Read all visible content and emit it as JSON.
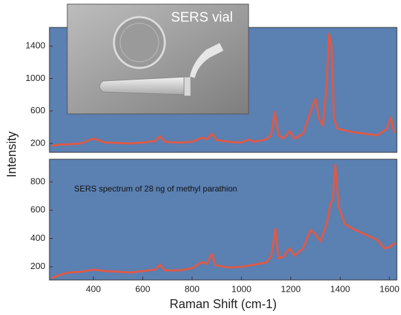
{
  "chart_data": [
    {
      "type": "line",
      "ylabel": "Intensity",
      "inset_label": "SERS vial",
      "color": "#dd5a48",
      "background": "#5b80b2",
      "xlim": [
        222,
        1630
      ],
      "ylim": [
        90,
        1630
      ],
      "yticks": [
        200,
        600,
        1000,
        1400
      ],
      "x": [
        230,
        260,
        300,
        350,
        400,
        420,
        450,
        500,
        550,
        600,
        650,
        670,
        690,
        750,
        800,
        840,
        860,
        880,
        900,
        950,
        1000,
        1030,
        1050,
        1100,
        1120,
        1135,
        1150,
        1170,
        1195,
        1215,
        1250,
        1270,
        1290,
        1300,
        1315,
        1330,
        1345,
        1355,
        1365,
        1375,
        1390,
        1450,
        1500,
        1550,
        1590,
        1605,
        1620
      ],
      "values": [
        170,
        185,
        190,
        200,
        260,
        240,
        210,
        205,
        200,
        210,
        230,
        290,
        220,
        210,
        220,
        270,
        250,
        320,
        240,
        220,
        210,
        250,
        220,
        250,
        300,
        590,
        300,
        260,
        350,
        260,
        320,
        500,
        680,
        750,
        500,
        420,
        900,
        1550,
        1400,
        500,
        380,
        340,
        320,
        300,
        380,
        520,
        330
      ]
    },
    {
      "type": "line",
      "xlabel": "Raman Shift (cm-1)",
      "annotation": "SERS spectrum of 28 ng of methyl parathion",
      "color": "#dd5a48",
      "background": "#5b80b2",
      "xlim": [
        222,
        1630
      ],
      "ylim": [
        107,
        960
      ],
      "yticks": [
        200,
        400,
        600,
        800
      ],
      "xticks": [
        400,
        600,
        800,
        1000,
        1200,
        1400,
        1600
      ],
      "x": [
        230,
        260,
        300,
        350,
        400,
        450,
        500,
        550,
        600,
        650,
        670,
        690,
        750,
        800,
        840,
        860,
        880,
        895,
        950,
        1000,
        1050,
        1100,
        1120,
        1138,
        1150,
        1170,
        1195,
        1215,
        1250,
        1280,
        1300,
        1320,
        1345,
        1360,
        1370,
        1380,
        1395,
        1420,
        1450,
        1500,
        1550,
        1580,
        1600,
        1625
      ],
      "values": [
        120,
        140,
        160,
        165,
        180,
        170,
        165,
        160,
        170,
        180,
        215,
        175,
        175,
        190,
        235,
        220,
        290,
        210,
        195,
        200,
        215,
        230,
        270,
        470,
        260,
        270,
        330,
        280,
        330,
        460,
        430,
        380,
        500,
        640,
        680,
        920,
        620,
        500,
        470,
        430,
        390,
        330,
        340,
        370
      ]
    }
  ]
}
